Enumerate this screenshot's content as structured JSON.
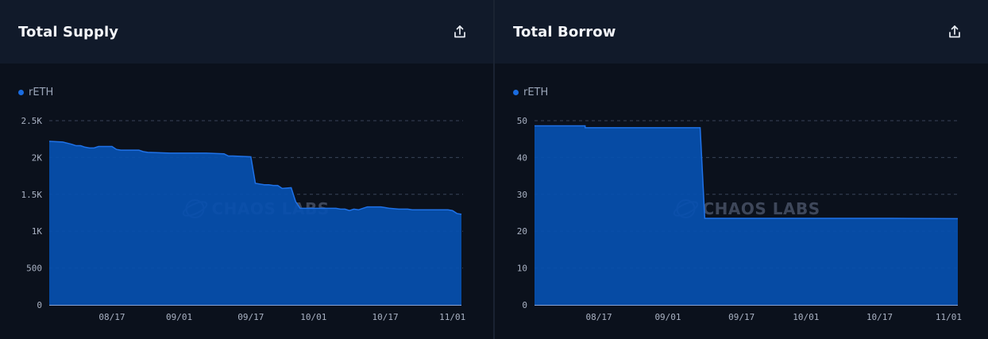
{
  "watermark": "CHAOS LABS",
  "icons": {
    "export": "share-export-icon",
    "watermark": "chaos-labs-logo-icon"
  },
  "colors": {
    "series": "#1a6ce0",
    "fill": "#0650b0",
    "line": "#1f72e8",
    "grid": "#3a4458"
  },
  "chart_data": [
    {
      "type": "area",
      "title": "Total Supply",
      "legend": [
        "rETH"
      ],
      "legend_position": "top-left",
      "grid": true,
      "ylim": [
        0,
        2500
      ],
      "yticks": [
        0,
        500,
        1000,
        1500,
        2000,
        2500
      ],
      "ytick_labels": [
        "0",
        "500",
        "1K",
        "1.5K",
        "2K",
        "2.5K"
      ],
      "xlim": [
        "2023-08-03",
        "2023-11-03"
      ],
      "xtick_labels": [
        "08/17",
        "09/01",
        "09/17",
        "10/01",
        "10/17",
        "11/01"
      ],
      "xtick_dates": [
        "2023-08-17",
        "2023-09-01",
        "2023-09-17",
        "2023-10-01",
        "2023-10-17",
        "2023-11-01"
      ],
      "series": [
        {
          "name": "rETH",
          "x": [
            "2023-08-03",
            "2023-08-06",
            "2023-08-08",
            "2023-08-09",
            "2023-08-10",
            "2023-08-11",
            "2023-08-12",
            "2023-08-13",
            "2023-08-14",
            "2023-08-15",
            "2023-08-17",
            "2023-08-18",
            "2023-08-19",
            "2023-08-23",
            "2023-08-24",
            "2023-08-25",
            "2023-08-30",
            "2023-09-02",
            "2023-09-06",
            "2023-09-07",
            "2023-09-11",
            "2023-09-12",
            "2023-09-13",
            "2023-09-17",
            "2023-09-18",
            "2023-09-19",
            "2023-09-20",
            "2023-09-21",
            "2023-09-22",
            "2023-09-23",
            "2023-09-24",
            "2023-09-26",
            "2023-09-27",
            "2023-09-28",
            "2023-10-02",
            "2023-10-06",
            "2023-10-07",
            "2023-10-08",
            "2023-10-09",
            "2023-10-10",
            "2023-10-11",
            "2023-10-12",
            "2023-10-13",
            "2023-10-14",
            "2023-10-15",
            "2023-10-16",
            "2023-10-17",
            "2023-10-18",
            "2023-10-20",
            "2023-10-22",
            "2023-10-23",
            "2023-10-29",
            "2023-10-30",
            "2023-10-31",
            "2023-11-01",
            "2023-11-02",
            "2023-11-03"
          ],
          "values": [
            2220,
            2210,
            2180,
            2160,
            2160,
            2140,
            2130,
            2130,
            2150,
            2150,
            2150,
            2110,
            2100,
            2100,
            2080,
            2070,
            2060,
            2060,
            2060,
            2060,
            2050,
            2020,
            2020,
            2010,
            1650,
            1640,
            1630,
            1630,
            1620,
            1620,
            1580,
            1590,
            1400,
            1310,
            1310,
            1310,
            1300,
            1300,
            1280,
            1300,
            1290,
            1310,
            1330,
            1330,
            1330,
            1330,
            1320,
            1310,
            1300,
            1300,
            1290,
            1290,
            1290,
            1290,
            1280,
            1240,
            1230
          ]
        }
      ]
    },
    {
      "type": "area",
      "title": "Total Borrow",
      "legend": [
        "rETH"
      ],
      "legend_position": "top-left",
      "grid": true,
      "ylim": [
        0,
        50
      ],
      "yticks": [
        0,
        10,
        20,
        30,
        40,
        50
      ],
      "ytick_labels": [
        "0",
        "10",
        "20",
        "30",
        "40",
        "50"
      ],
      "xlim": [
        "2023-08-03",
        "2023-11-03"
      ],
      "xtick_labels": [
        "08/17",
        "09/01",
        "09/17",
        "10/01",
        "10/17",
        "11/01"
      ],
      "xtick_dates": [
        "2023-08-17",
        "2023-09-01",
        "2023-09-17",
        "2023-10-01",
        "2023-10-17",
        "2023-11-01"
      ],
      "series": [
        {
          "name": "rETH",
          "x": [
            "2023-08-03",
            "2023-08-14",
            "2023-08-14",
            "2023-09-08",
            "2023-09-09",
            "2023-10-20",
            "2023-11-03"
          ],
          "values": [
            48.6,
            48.6,
            48.1,
            48.1,
            23.5,
            23.5,
            23.4
          ]
        }
      ]
    }
  ]
}
